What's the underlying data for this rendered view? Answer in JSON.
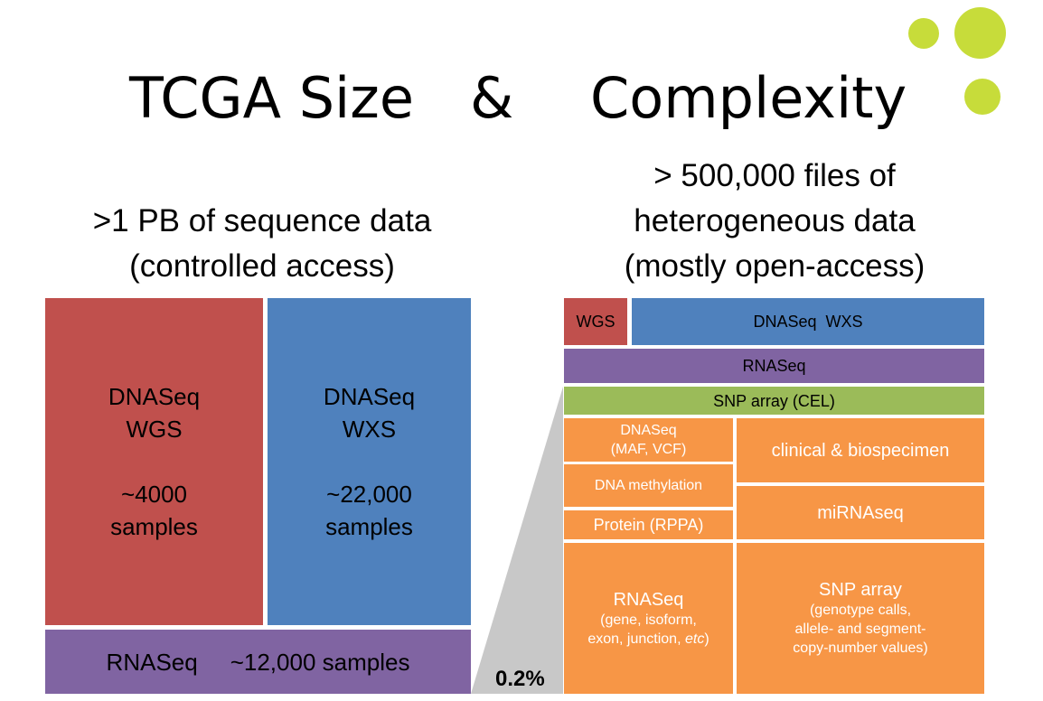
{
  "slide": {
    "title": {
      "part1": "TCGA Size",
      "amp": "&",
      "part2": "Complexity"
    },
    "left": {
      "subtitle": [
        ">1 PB of sequence data",
        "(controlled access)"
      ],
      "wgs": {
        "line1": "DNASeq",
        "line2": "WGS",
        "line3": "~4000",
        "line4": "samples"
      },
      "wxs": {
        "line1": "DNASeq",
        "line2": "WXS",
        "line3": "~22,000",
        "line4": "samples"
      },
      "rnaseq": {
        "label": "RNASeq",
        "count": "~12,000 samples"
      }
    },
    "zoom_percent": "0.2%",
    "right": {
      "subtitle": [
        "> 500,000 files of",
        "heterogeneous data",
        "(mostly open-access)"
      ],
      "wgs": "WGS",
      "dnaseq_wxs": "DNASeq  WXS",
      "rnaseq": "RNASeq",
      "snp_cel": "SNP array (CEL)",
      "dnaseq_maf": {
        "line1": "DNASeq",
        "line2": "(MAF, VCF)"
      },
      "clinical": "clinical & biospecimen",
      "methylation": "DNA methylation",
      "mirnaseq": "miRNAseq",
      "protein": "Protein (RPPA)",
      "rnaseq_files": {
        "line1": "RNASeq",
        "line2": "(gene, isoform,",
        "line3": "exon, junction, ",
        "line3_italic": "etc",
        "line3_end": ")"
      },
      "snp_array": {
        "line1": "SNP array",
        "line2": "(genotype calls,",
        "line3": "allele- and segment-",
        "line4": "copy-number values)"
      }
    },
    "colors": {
      "red": "#c0504d",
      "blue": "#4f81bd",
      "purple": "#8064a2",
      "green": "#9bbb59",
      "orange": "#f79646",
      "dots": "#c7dc3a",
      "zoom_wedge": "#c8c8c8"
    }
  }
}
